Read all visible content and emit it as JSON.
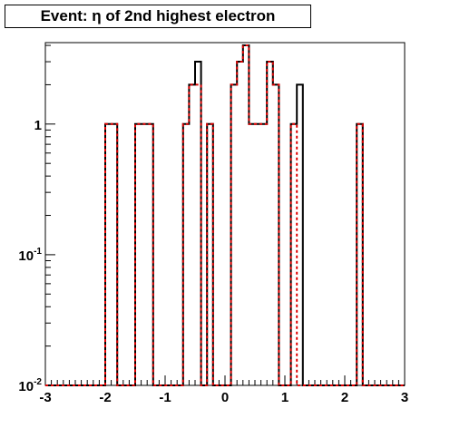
{
  "chart_data": {
    "type": "step",
    "title": "Event: η of 2nd highest electron",
    "xlabel": "",
    "ylabel": "",
    "xlim": [
      -3,
      3
    ],
    "ylim": [
      0.01,
      4.2
    ],
    "yscale": "log",
    "grid": false,
    "x_ticks": [
      -3,
      -2,
      -1,
      0,
      1,
      2,
      3
    ],
    "x_tick_labels": [
      "-3",
      "-2",
      "-1",
      "0",
      "1",
      "2",
      "3"
    ],
    "y_ticks": [
      {
        "value": 0.01,
        "base": "10",
        "exp": "-2"
      },
      {
        "value": 0.1,
        "base": "10",
        "exp": "-1"
      },
      {
        "value": 1,
        "base": "1",
        "exp": ""
      }
    ],
    "bin_edges": [
      -3.0,
      -2.9,
      -2.8,
      -2.7,
      -2.6,
      -2.5,
      -2.4,
      -2.3,
      -2.2,
      -2.1,
      -2.0,
      -1.9,
      -1.8,
      -1.7,
      -1.6,
      -1.5,
      -1.4,
      -1.3,
      -1.2,
      -1.1,
      -1.0,
      -0.9,
      -0.8,
      -0.7,
      -0.6,
      -0.5,
      -0.4,
      -0.3,
      -0.2,
      -0.1,
      0.0,
      0.1,
      0.2,
      0.3,
      0.4,
      0.5,
      0.6,
      0.7,
      0.8,
      0.9,
      1.0,
      1.1,
      1.2,
      1.3,
      1.4,
      1.5,
      1.6,
      1.7,
      1.8,
      1.9,
      2.0,
      2.1,
      2.2,
      2.3,
      2.4,
      2.5,
      2.6,
      2.7,
      2.8,
      2.9,
      3.0
    ],
    "series": [
      {
        "color": "#000000",
        "dash": "solid",
        "values": [
          0,
          0,
          0,
          0,
          0,
          0,
          0,
          0,
          0,
          0,
          1,
          1,
          0,
          0,
          0,
          1,
          1,
          1,
          0,
          0,
          0,
          0,
          0,
          1,
          2,
          3,
          0,
          1,
          0,
          0,
          0,
          2,
          3,
          4,
          1,
          1,
          1,
          3,
          2,
          0,
          0,
          1,
          2,
          0,
          0,
          0,
          0,
          0,
          0,
          0,
          0,
          0,
          1,
          0,
          0,
          0,
          0,
          0,
          0,
          0
        ]
      },
      {
        "color": "#e00000",
        "dash": "dotted",
        "values": [
          0,
          0,
          0,
          0,
          0,
          0,
          0,
          0,
          0,
          0,
          1,
          1,
          0,
          0,
          0,
          1,
          1,
          1,
          0,
          0,
          0,
          0,
          0,
          1,
          2,
          2,
          0,
          1,
          0,
          0,
          0,
          2,
          3,
          4,
          1,
          1,
          1,
          3,
          2,
          0,
          0,
          1,
          0,
          0,
          0,
          0,
          0,
          0,
          0,
          0,
          0,
          0,
          1,
          0,
          0,
          0,
          0,
          0,
          0,
          0
        ]
      }
    ]
  }
}
